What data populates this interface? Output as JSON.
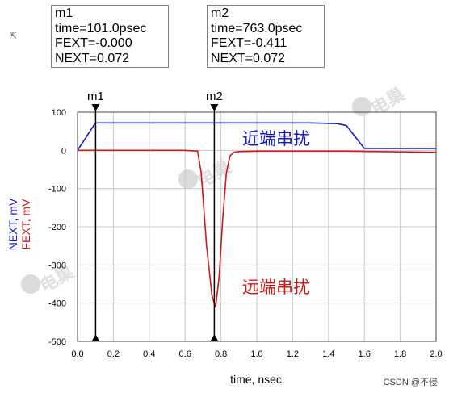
{
  "markers": [
    {
      "name": "m1",
      "time": "time=101.0psec",
      "fext": "FEXT=-0.000",
      "next": "NEXT=0.072"
    },
    {
      "name": "m2",
      "time": "time=763.0psec",
      "fext": "FEXT=-0.411",
      "next": "NEXT=0.072"
    }
  ],
  "chart_data": {
    "type": "line",
    "xlabel": "time, nsec",
    "ylabel_next": "NEXT, mV",
    "ylabel_fext": "FEXT, mV",
    "xlim": [
      0,
      2.0
    ],
    "ylim": [
      -500,
      100
    ],
    "x_ticks": [
      "0.0",
      "0.2",
      "0.4",
      "0.6",
      "0.8",
      "1.0",
      "1.2",
      "1.4",
      "1.6",
      "1.8",
      "2.0"
    ],
    "y_ticks": [
      "100",
      "0",
      "-100",
      "-200",
      "-300",
      "-400",
      "-500"
    ],
    "grid": true,
    "series": [
      {
        "name": "NEXT",
        "color": "#1a1acc",
        "x": [
          0,
          0.1,
          0.3,
          0.6,
          1.0,
          1.3,
          1.45,
          1.5,
          1.55,
          1.6,
          2.0
        ],
        "y": [
          0,
          72,
          72,
          72,
          72,
          72,
          70,
          65,
          35,
          5,
          5
        ]
      },
      {
        "name": "FEXT",
        "color": "#cc1a1a",
        "x": [
          0,
          0.2,
          0.4,
          0.6,
          0.67,
          0.69,
          0.72,
          0.75,
          0.77,
          0.79,
          0.81,
          0.83,
          0.85,
          0.87,
          0.9,
          1.0,
          1.5,
          2.0
        ],
        "y": [
          0,
          0,
          0,
          0,
          -2,
          -60,
          -250,
          -380,
          -411,
          -330,
          -180,
          -60,
          -15,
          -5,
          -3,
          -2,
          -2,
          -5
        ]
      }
    ],
    "markers": [
      {
        "name": "m1",
        "x": 0.101
      },
      {
        "name": "m2",
        "x": 0.763
      }
    ],
    "annotations": [
      {
        "text": "近端串扰",
        "color": "#1a1acc"
      },
      {
        "text": "远端串扰",
        "color": "#cc1a1a"
      }
    ]
  },
  "footer": "CSDN @不侵",
  "watermark": "电巢"
}
